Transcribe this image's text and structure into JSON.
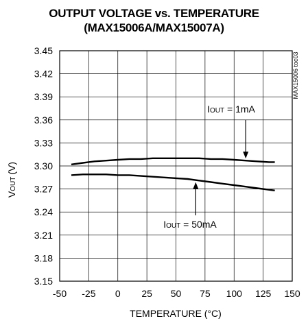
{
  "chart_data": {
    "type": "line",
    "title": "OUTPUT VOLTAGE vs. TEMPERATURE",
    "subtitle": "(MAX15006A/MAX15007A)",
    "xlabel": "TEMPERATURE (°C)",
    "ylabel_main": "V",
    "ylabel_sub": "OUT",
    "ylabel_unit": "(V)",
    "xlim": [
      -50,
      150
    ],
    "ylim": [
      3.15,
      3.45
    ],
    "x_ticks": [
      "-50",
      "-25",
      "0",
      "25",
      "50",
      "75",
      "100",
      "125",
      "150"
    ],
    "y_ticks": [
      "3.15",
      "3.18",
      "3.21",
      "3.24",
      "3.27",
      "3.30",
      "3.33",
      "3.36",
      "3.39",
      "3.42",
      "3.45"
    ],
    "grid": true,
    "watermark": "MAX15006 toc03",
    "series": [
      {
        "name": "IOUT = 1mA",
        "x": [
          -40,
          -30,
          -20,
          -10,
          0,
          10,
          20,
          30,
          40,
          50,
          60,
          70,
          80,
          90,
          100,
          110,
          120,
          130,
          135
        ],
        "y": [
          3.302,
          3.304,
          3.306,
          3.307,
          3.308,
          3.309,
          3.309,
          3.31,
          3.31,
          3.31,
          3.31,
          3.31,
          3.309,
          3.309,
          3.308,
          3.307,
          3.306,
          3.305,
          3.305
        ]
      },
      {
        "name": "IOUT = 50mA",
        "x": [
          -40,
          -30,
          -20,
          -10,
          0,
          10,
          20,
          30,
          40,
          50,
          60,
          70,
          80,
          90,
          100,
          110,
          120,
          130,
          135
        ],
        "y": [
          3.288,
          3.289,
          3.289,
          3.289,
          3.288,
          3.288,
          3.287,
          3.286,
          3.285,
          3.284,
          3.283,
          3.281,
          3.279,
          3.277,
          3.275,
          3.273,
          3.271,
          3.269,
          3.268
        ]
      }
    ],
    "annotations": [
      {
        "main": "I",
        "sub": "OUT",
        "rest": " = 1mA",
        "series": 0,
        "arrow_x": 110
      },
      {
        "main": "I",
        "sub": "OUT",
        "rest": " = 50mA",
        "series": 1,
        "arrow_x": 67
      }
    ]
  }
}
